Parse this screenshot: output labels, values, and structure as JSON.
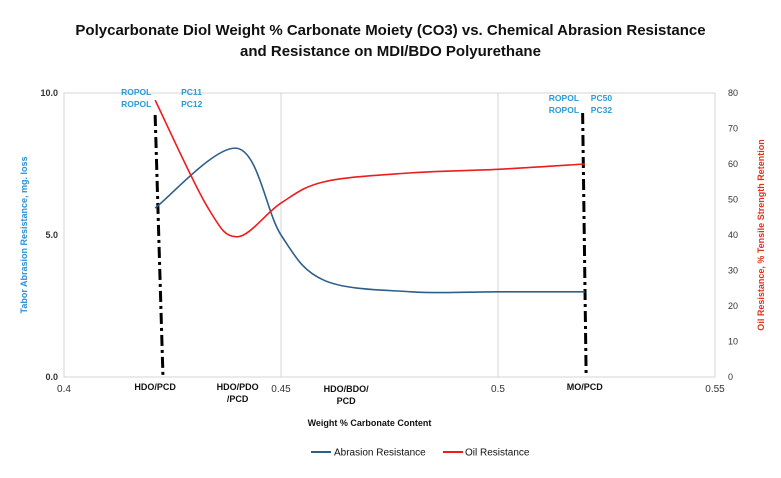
{
  "chart_data": {
    "type": "line",
    "title": "Polycarbonate Diol Weight % Carbonate Moiety (CO3) vs. Chemical Abrasion Resistance",
    "subtitle": "and  Resistance on  MDI/BDO Polyurethane",
    "xlabel": "Weight % Carbonate Content",
    "ylabel_left": "Tabor Abrasion Resistance, mg. loss",
    "ylabel_right": "Oil Resistance, % Tensile Strength Retention",
    "xlim": [
      0.4,
      0.55
    ],
    "ylim_left": [
      0,
      10
    ],
    "ylim_right": [
      0,
      80
    ],
    "x_ticks": [
      "0.4",
      "0.45",
      "0.5",
      "0.55"
    ],
    "y_ticks_left": [
      "0.0",
      "5.0",
      "10.0"
    ],
    "y_ticks_right": [
      "0",
      "10",
      "20",
      "30",
      "40",
      "50",
      "60",
      "70",
      "80"
    ],
    "grid": "vertical",
    "legend_position": "bottom",
    "series": [
      {
        "name": "Abrasion Resistance",
        "axis": "left",
        "color": "#2e5f8a",
        "points": [
          [
            0.421,
            5.95
          ],
          [
            0.44,
            8.05
          ],
          [
            0.45,
            5.0
          ],
          [
            0.46,
            3.4
          ],
          [
            0.48,
            3.0
          ],
          [
            0.5,
            3.0
          ],
          [
            0.52,
            3.0
          ]
        ]
      },
      {
        "name": "Oil Resistance",
        "axis": "right",
        "color": "#ee1c1c",
        "points": [
          [
            0.421,
            78
          ],
          [
            0.433,
            48
          ],
          [
            0.44,
            39.5
          ],
          [
            0.45,
            49
          ],
          [
            0.46,
            55
          ],
          [
            0.48,
            57.5
          ],
          [
            0.5,
            58.5
          ],
          [
            0.52,
            60
          ]
        ]
      }
    ],
    "markers": [
      {
        "x": 0.421,
        "text_left": "ROPOL",
        "text_right": "PC11",
        "align": "left"
      },
      {
        "x": 0.421,
        "text_left": "ROPOL",
        "text_right": "PC12",
        "align": "left"
      },
      {
        "x": 0.52,
        "text_left": "ROPOL",
        "text_right": "PC50",
        "align": "right"
      },
      {
        "x": 0.52,
        "text_left": "ROPOL",
        "text_right": "PC32",
        "align": "right"
      }
    ],
    "category_labels": [
      {
        "x": 0.421,
        "lines": [
          "HDO/PCD"
        ]
      },
      {
        "x": 0.44,
        "lines": [
          "HDO/PDO",
          "/PCD"
        ]
      },
      {
        "x": 0.465,
        "lines": [
          "HDO/BDO/",
          "PCD"
        ]
      },
      {
        "x": 0.52,
        "lines": [
          "MO/PCD"
        ]
      }
    ]
  }
}
